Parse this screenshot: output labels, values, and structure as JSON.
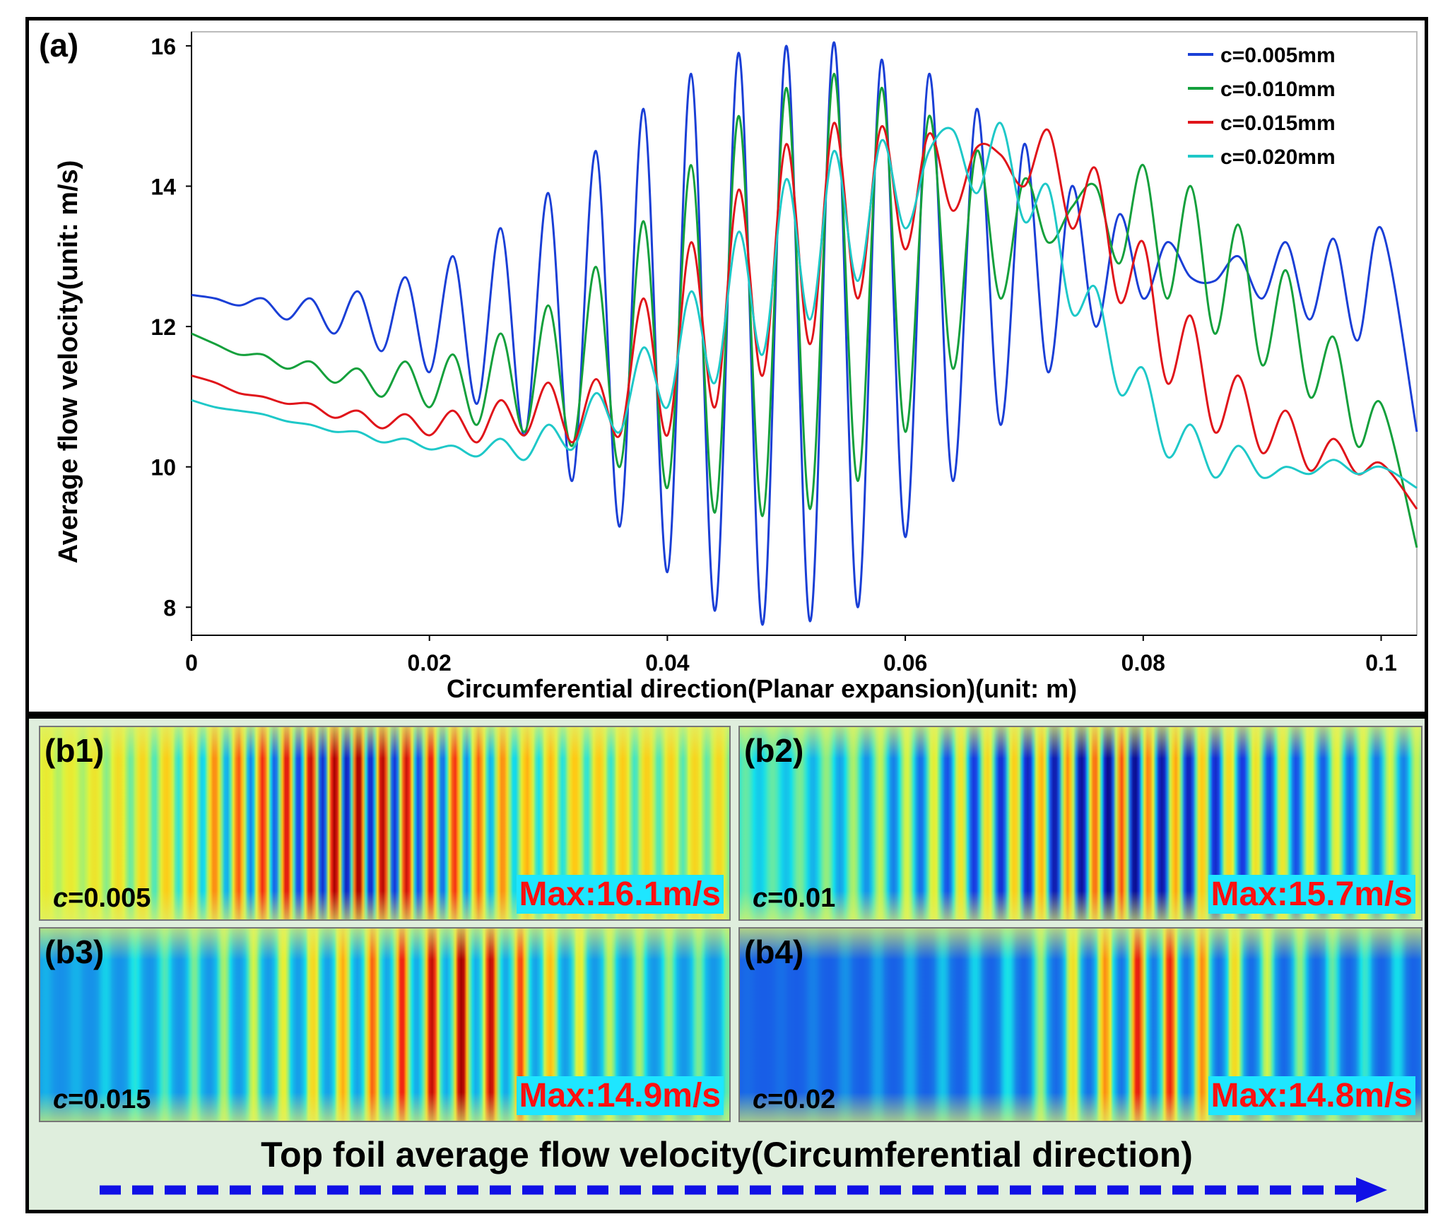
{
  "chart_data": {
    "type": "line",
    "panel_label": "(a)",
    "xlabel": "Circumferential direction(Planar expansion)(unit: m)",
    "ylabel": "Average flow velocity(unit: m/s)",
    "xlim": [
      0,
      0.103
    ],
    "ylim": [
      7.6,
      16.2
    ],
    "x_ticks": [
      0,
      0.02,
      0.04,
      0.06,
      0.08,
      0.1
    ],
    "x_tick_labels": [
      "0",
      "0.02",
      "0.04",
      "0.06",
      "0.08",
      "0.1"
    ],
    "y_ticks": [
      8,
      10,
      12,
      14,
      16
    ],
    "y_tick_labels": [
      "8",
      "10",
      "12",
      "14",
      "16"
    ],
    "grid": false,
    "legend_position": "top-right",
    "series": [
      {
        "name": "c=0.005mm",
        "color": "#1a3fd6",
        "x": [
          0,
          0.002,
          0.004,
          0.006,
          0.008,
          0.01,
          0.012,
          0.014,
          0.016,
          0.018,
          0.02,
          0.022,
          0.024,
          0.026,
          0.028,
          0.03,
          0.032,
          0.034,
          0.036,
          0.038,
          0.04,
          0.042,
          0.044,
          0.046,
          0.048,
          0.05,
          0.052,
          0.054,
          0.056,
          0.058,
          0.06,
          0.062,
          0.064,
          0.066,
          0.068,
          0.07,
          0.072,
          0.074,
          0.076,
          0.078,
          0.08,
          0.082,
          0.084,
          0.086,
          0.088,
          0.09,
          0.092,
          0.094,
          0.096,
          0.098,
          0.1,
          0.103
        ],
        "y": [
          12.45,
          12.4,
          12.3,
          12.4,
          12.1,
          12.4,
          11.9,
          12.5,
          11.65,
          12.7,
          11.35,
          13.0,
          10.9,
          13.4,
          10.45,
          13.9,
          9.8,
          14.5,
          9.15,
          15.1,
          8.5,
          15.6,
          7.95,
          15.9,
          7.75,
          16.0,
          7.8,
          16.05,
          8.0,
          15.8,
          9.0,
          15.6,
          9.8,
          15.1,
          10.6,
          14.6,
          11.35,
          14.0,
          12.0,
          13.6,
          12.4,
          13.2,
          12.7,
          12.65,
          13.0,
          12.4,
          13.2,
          12.1,
          13.25,
          11.8,
          13.4,
          10.5
        ]
      },
      {
        "name": "c=0.010mm",
        "color": "#14a03c",
        "x": [
          0,
          0.002,
          0.004,
          0.006,
          0.008,
          0.01,
          0.012,
          0.014,
          0.016,
          0.018,
          0.02,
          0.022,
          0.024,
          0.026,
          0.028,
          0.03,
          0.032,
          0.034,
          0.036,
          0.038,
          0.04,
          0.042,
          0.044,
          0.046,
          0.048,
          0.05,
          0.052,
          0.054,
          0.056,
          0.058,
          0.06,
          0.062,
          0.064,
          0.066,
          0.068,
          0.07,
          0.072,
          0.074,
          0.076,
          0.078,
          0.08,
          0.082,
          0.084,
          0.086,
          0.088,
          0.09,
          0.092,
          0.094,
          0.096,
          0.098,
          0.1,
          0.103
        ],
        "y": [
          11.9,
          11.75,
          11.6,
          11.6,
          11.4,
          11.5,
          11.2,
          11.4,
          11.0,
          11.5,
          10.85,
          11.6,
          10.6,
          11.9,
          10.5,
          12.3,
          10.3,
          12.85,
          10.0,
          13.5,
          9.7,
          14.3,
          9.35,
          15.0,
          9.3,
          15.4,
          9.4,
          15.6,
          9.8,
          15.4,
          10.5,
          15.0,
          11.4,
          14.5,
          12.4,
          14.1,
          13.2,
          13.7,
          14.0,
          12.9,
          14.3,
          12.4,
          14.0,
          11.9,
          13.45,
          11.45,
          12.8,
          11.0,
          11.85,
          10.3,
          10.9,
          8.85
        ]
      },
      {
        "name": "c=0.015mm",
        "color": "#e0141a",
        "x": [
          0,
          0.002,
          0.004,
          0.006,
          0.008,
          0.01,
          0.012,
          0.014,
          0.016,
          0.018,
          0.02,
          0.022,
          0.024,
          0.026,
          0.028,
          0.03,
          0.032,
          0.034,
          0.036,
          0.038,
          0.04,
          0.042,
          0.044,
          0.046,
          0.048,
          0.05,
          0.052,
          0.054,
          0.056,
          0.058,
          0.06,
          0.062,
          0.064,
          0.066,
          0.068,
          0.07,
          0.072,
          0.074,
          0.076,
          0.078,
          0.08,
          0.082,
          0.084,
          0.086,
          0.088,
          0.09,
          0.092,
          0.094,
          0.096,
          0.098,
          0.1,
          0.103
        ],
        "y": [
          11.3,
          11.2,
          11.05,
          11.0,
          10.9,
          10.9,
          10.7,
          10.8,
          10.55,
          10.75,
          10.45,
          10.8,
          10.35,
          10.95,
          10.45,
          11.2,
          10.35,
          11.25,
          10.45,
          12.4,
          10.45,
          13.2,
          10.85,
          13.95,
          11.3,
          14.6,
          11.75,
          14.9,
          12.4,
          14.85,
          13.1,
          14.75,
          13.65,
          14.55,
          14.45,
          14.0,
          14.8,
          13.4,
          14.25,
          12.35,
          13.2,
          11.2,
          12.15,
          10.5,
          11.3,
          10.2,
          10.8,
          9.95,
          10.4,
          9.9,
          10.05,
          9.4
        ]
      },
      {
        "name": "c=0.020mm",
        "color": "#1ec8c8",
        "x": [
          0,
          0.002,
          0.004,
          0.006,
          0.008,
          0.01,
          0.012,
          0.014,
          0.016,
          0.018,
          0.02,
          0.022,
          0.024,
          0.026,
          0.028,
          0.03,
          0.032,
          0.034,
          0.036,
          0.038,
          0.04,
          0.042,
          0.044,
          0.046,
          0.048,
          0.05,
          0.052,
          0.054,
          0.056,
          0.058,
          0.06,
          0.062,
          0.064,
          0.066,
          0.068,
          0.07,
          0.072,
          0.074,
          0.076,
          0.078,
          0.08,
          0.082,
          0.084,
          0.086,
          0.088,
          0.09,
          0.092,
          0.094,
          0.096,
          0.098,
          0.1,
          0.103
        ],
        "y": [
          10.95,
          10.85,
          10.8,
          10.75,
          10.65,
          10.6,
          10.5,
          10.5,
          10.35,
          10.4,
          10.25,
          10.3,
          10.15,
          10.4,
          10.1,
          10.6,
          10.25,
          11.05,
          10.5,
          11.7,
          10.85,
          12.5,
          11.2,
          13.35,
          11.6,
          14.1,
          12.1,
          14.5,
          12.65,
          14.65,
          13.4,
          14.5,
          14.8,
          13.9,
          14.9,
          13.5,
          14.0,
          12.2,
          12.55,
          11.05,
          11.4,
          10.15,
          10.6,
          9.85,
          10.3,
          9.85,
          10.0,
          9.9,
          10.1,
          9.9,
          10.0,
          9.7
        ]
      }
    ]
  },
  "maps": [
    {
      "tag": "(b1)",
      "c_italic": "c",
      "c_value": "=0.005",
      "max_label": "Max:16.1m/s"
    },
    {
      "tag": "(b2)",
      "c_italic": "c",
      "c_value": "=0.01",
      "max_label": "Max:15.7m/s"
    },
    {
      "tag": "(b3)",
      "c_italic": "c",
      "c_value": "=0.015",
      "max_label": "Max:14.9m/s"
    },
    {
      "tag": "(b4)",
      "c_italic": "c",
      "c_value": "=0.02",
      "max_label": "Max:14.8m/s"
    }
  ],
  "colors": {
    "max_label_bg": "#1ee6ff",
    "max_label_text": "#ff1010",
    "arrow": "#1010e6",
    "panel_b_bg": "#dfeedd"
  },
  "bottom_caption": "Top foil average flow velocity(Circumferential direction)"
}
